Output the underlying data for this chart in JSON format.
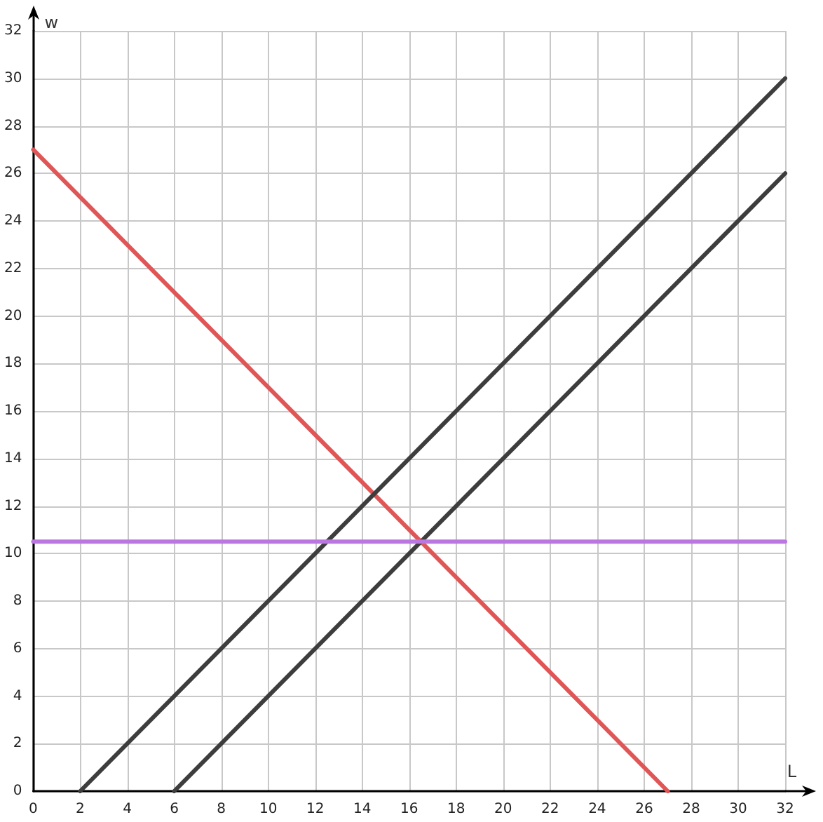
{
  "chart_data": {
    "type": "line",
    "xlabel": "L",
    "ylabel": "w",
    "xlim": [
      0,
      32
    ],
    "ylim": [
      0,
      32
    ],
    "xticks": [
      0,
      2,
      4,
      6,
      8,
      10,
      12,
      14,
      16,
      18,
      20,
      22,
      24,
      26,
      28,
      30,
      32
    ],
    "yticks": [
      0,
      2,
      4,
      6,
      8,
      10,
      12,
      14,
      16,
      18,
      20,
      22,
      24,
      26,
      28,
      30,
      32
    ],
    "grid": true,
    "marker": "none",
    "line_style": "solid",
    "series": [
      {
        "color": "#e05555",
        "x": [
          0,
          27
        ],
        "values": [
          27,
          0
        ]
      },
      {
        "color": "#3d3d3d",
        "x": [
          2,
          32
        ],
        "values": [
          0,
          30
        ]
      },
      {
        "color": "#3d3d3d",
        "x": [
          6,
          32
        ],
        "values": [
          0,
          26
        ]
      },
      {
        "color": "#bb77e0",
        "x": [
          0,
          32
        ],
        "values": [
          10.5,
          10.5
        ]
      }
    ]
  }
}
